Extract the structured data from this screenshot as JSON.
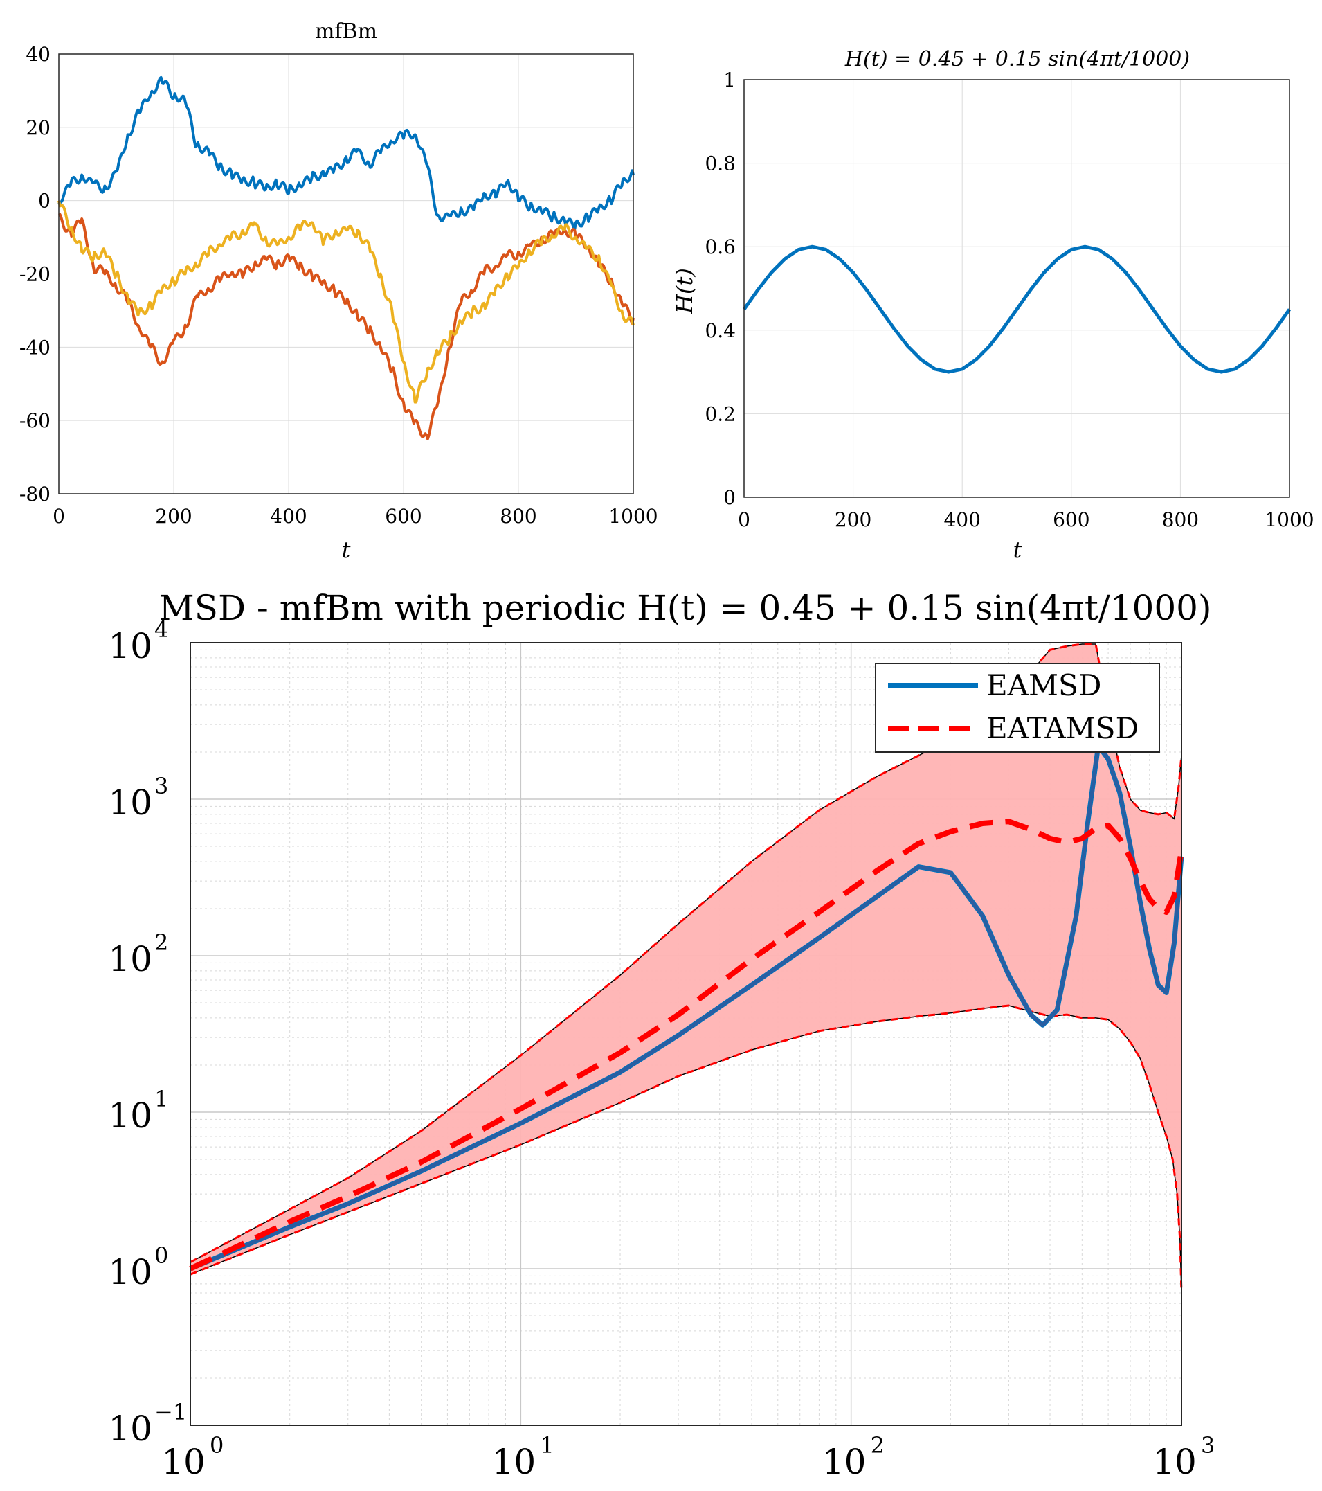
{
  "chart_data": [
    {
      "type": "line",
      "title": "mfBm",
      "xlabel": "t",
      "ylabel": "",
      "xlim": [
        0,
        1000
      ],
      "ylim": [
        -80,
        40
      ],
      "xticks": [
        "0",
        "200",
        "400",
        "600",
        "800",
        "1000"
      ],
      "yticks": [
        "40",
        "20",
        "0",
        "-20",
        "-40",
        "-60",
        "-80"
      ],
      "grid": true,
      "series_colors": [
        "#0072BD",
        "#D95319",
        "#EDB120"
      ],
      "series": [
        {
          "x": [
            0,
            20,
            40,
            60,
            80,
            100,
            120,
            140,
            160,
            180,
            200,
            220,
            240,
            260,
            280,
            300,
            320,
            340,
            360,
            380,
            400,
            420,
            440,
            460,
            480,
            500,
            520,
            540,
            560,
            580,
            600,
            620,
            640,
            660,
            680,
            700,
            720,
            740,
            760,
            780,
            800,
            820,
            840,
            860,
            880,
            900,
            920,
            940,
            960,
            980,
            1000
          ],
          "values": [
            -1,
            4,
            7,
            5,
            4,
            8,
            18,
            24,
            29,
            32,
            28,
            27,
            15,
            14,
            10,
            8,
            6,
            5,
            3,
            4,
            2,
            4,
            6,
            8,
            9,
            12,
            14,
            10,
            13,
            16,
            17,
            18,
            10,
            -4,
            -4,
            -2,
            -2,
            2,
            1,
            5,
            0,
            -2,
            -3,
            -4,
            -5,
            -6,
            -4,
            -2,
            0,
            4,
            7
          ]
        },
        {
          "x": [
            0,
            20,
            40,
            60,
            80,
            100,
            120,
            140,
            160,
            180,
            200,
            220,
            240,
            260,
            280,
            300,
            320,
            340,
            360,
            380,
            400,
            420,
            440,
            460,
            480,
            500,
            520,
            540,
            560,
            580,
            600,
            620,
            640,
            660,
            680,
            700,
            720,
            740,
            760,
            780,
            800,
            820,
            840,
            860,
            880,
            900,
            920,
            940,
            960,
            980,
            1000
          ],
          "values": [
            -4,
            -8,
            -5,
            -18,
            -20,
            -24,
            -28,
            -35,
            -40,
            -44,
            -38,
            -34,
            -26,
            -24,
            -22,
            -20,
            -21,
            -18,
            -16,
            -17,
            -15,
            -17,
            -20,
            -22,
            -25,
            -28,
            -32,
            -36,
            -40,
            -46,
            -55,
            -60,
            -64,
            -55,
            -40,
            -28,
            -25,
            -20,
            -18,
            -15,
            -14,
            -12,
            -10,
            -9,
            -8,
            -10,
            -13,
            -18,
            -22,
            -28,
            -32
          ]
        },
        {
          "x": [
            0,
            20,
            40,
            60,
            80,
            100,
            120,
            140,
            160,
            180,
            200,
            220,
            240,
            260,
            280,
            300,
            320,
            340,
            360,
            380,
            400,
            420,
            440,
            460,
            480,
            500,
            520,
            540,
            560,
            580,
            600,
            620,
            640,
            660,
            680,
            700,
            720,
            740,
            760,
            780,
            800,
            820,
            840,
            860,
            880,
            900,
            920,
            940,
            960,
            980,
            1000
          ],
          "values": [
            0,
            -8,
            -14,
            -16,
            -14,
            -20,
            -26,
            -30,
            -28,
            -24,
            -22,
            -20,
            -18,
            -15,
            -12,
            -10,
            -8,
            -6,
            -10,
            -12,
            -10,
            -8,
            -6,
            -12,
            -9,
            -8,
            -8,
            -12,
            -20,
            -30,
            -44,
            -55,
            -48,
            -42,
            -38,
            -33,
            -30,
            -28,
            -24,
            -20,
            -18,
            -14,
            -12,
            -10,
            -8,
            -10,
            -13,
            -15,
            -22,
            -30,
            -34
          ]
        }
      ]
    },
    {
      "type": "line",
      "title": "H(t) = 0.45 + 0.15 sin(4πt/1000)",
      "xlabel": "t",
      "ylabel": "H(t)",
      "xlim": [
        0,
        1000
      ],
      "ylim": [
        0,
        1
      ],
      "xticks": [
        "0",
        "200",
        "400",
        "600",
        "800",
        "1000"
      ],
      "yticks": [
        "1",
        "0.8",
        "0.6",
        "0.4",
        "0.2",
        "0"
      ],
      "grid": true,
      "series_colors": [
        "#0072BD"
      ],
      "series": [
        {
          "x": [
            0,
            25,
            50,
            75,
            100,
            125,
            150,
            175,
            200,
            225,
            250,
            275,
            300,
            325,
            350,
            375,
            400,
            425,
            450,
            475,
            500,
            525,
            550,
            575,
            600,
            625,
            650,
            675,
            700,
            725,
            750,
            775,
            800,
            825,
            850,
            875,
            900,
            925,
            950,
            975,
            1000
          ],
          "values": [
            0.45,
            0.496,
            0.538,
            0.571,
            0.593,
            0.6,
            0.593,
            0.571,
            0.538,
            0.496,
            0.45,
            0.404,
            0.362,
            0.329,
            0.307,
            0.3,
            0.307,
            0.329,
            0.362,
            0.404,
            0.45,
            0.496,
            0.538,
            0.571,
            0.593,
            0.6,
            0.593,
            0.571,
            0.538,
            0.496,
            0.45,
            0.404,
            0.362,
            0.329,
            0.307,
            0.3,
            0.307,
            0.329,
            0.362,
            0.404,
            0.45
          ]
        }
      ]
    },
    {
      "type": "line",
      "title": "MSD - mfBm with periodic H(t) = 0.45 + 0.15 sin(4πt/1000)",
      "xlabel": "",
      "ylabel": "",
      "xscale": "log",
      "yscale": "log",
      "xlim": [
        1,
        1000
      ],
      "ylim": [
        0.1,
        10000
      ],
      "xtick_base": "10",
      "xtick_exponents": [
        "0",
        "1",
        "2",
        "3"
      ],
      "ytick_base": "10",
      "ytick_exponents": [
        "4",
        "3",
        "2",
        "1",
        "0",
        "−1"
      ],
      "grid": true,
      "legend_position": "top-right",
      "band_color": "#FFB3B3",
      "series": [
        {
          "name": "EAMSD",
          "color": "#0072BD",
          "style": "solid",
          "x": [
            1,
            2,
            3,
            5,
            10,
            20,
            30,
            50,
            80,
            120,
            160,
            200,
            250,
            300,
            350,
            380,
            420,
            480,
            520,
            560,
            600,
            650,
            700,
            750,
            800,
            850,
            900,
            950,
            1000
          ],
          "values": [
            1.0,
            1.85,
            2.6,
            4.2,
            8.5,
            18,
            31,
            65,
            130,
            240,
            370,
            340,
            180,
            75,
            42,
            36,
            45,
            180,
            700,
            2200,
            1800,
            1100,
            500,
            220,
            110,
            65,
            58,
            120,
            430
          ]
        },
        {
          "name": "EATAMSD",
          "color": "#FF0000",
          "style": "dashed",
          "x": [
            1,
            2,
            3,
            5,
            10,
            20,
            30,
            50,
            80,
            120,
            160,
            200,
            250,
            300,
            350,
            400,
            450,
            500,
            550,
            600,
            650,
            700,
            750,
            800,
            850,
            900,
            950,
            1000
          ],
          "values": [
            1.0,
            2.0,
            2.9,
            4.8,
            10.5,
            24,
            42,
            95,
            190,
            350,
            520,
            620,
            700,
            720,
            640,
            560,
            530,
            560,
            650,
            680,
            560,
            420,
            300,
            230,
            200,
            190,
            240,
            470
          ]
        },
        {
          "name": "",
          "color": "#FF0000",
          "style": "upper-bound",
          "x": [
            1,
            2,
            3,
            5,
            10,
            20,
            30,
            50,
            80,
            120,
            160,
            200,
            250,
            300,
            350,
            400,
            450,
            500,
            550,
            600,
            650,
            700,
            750,
            800,
            850,
            900,
            950,
            980,
            1000
          ],
          "values": [
            1.1,
            2.4,
            3.8,
            7.6,
            23,
            75,
            160,
            400,
            850,
            1400,
            1900,
            2400,
            3200,
            4400,
            6500,
            9000,
            9500,
            9800,
            9800,
            3500,
            1600,
            1000,
            850,
            820,
            800,
            820,
            750,
            1200,
            1900
          ]
        },
        {
          "name": "",
          "color": "#FF0000",
          "style": "lower-bound",
          "x": [
            1,
            2,
            3,
            5,
            10,
            20,
            30,
            50,
            80,
            120,
            160,
            200,
            250,
            300,
            350,
            400,
            450,
            500,
            550,
            600,
            650,
            700,
            750,
            800,
            850,
            900,
            940,
            970,
            990,
            1000
          ],
          "values": [
            0.92,
            1.65,
            2.3,
            3.5,
            6.2,
            11.5,
            17,
            25,
            33,
            38,
            41,
            43,
            46,
            48,
            44,
            41,
            42,
            40,
            40,
            39,
            34,
            28,
            22,
            15,
            10,
            7,
            5,
            3,
            1.5,
            0.7
          ]
        }
      ]
    }
  ]
}
